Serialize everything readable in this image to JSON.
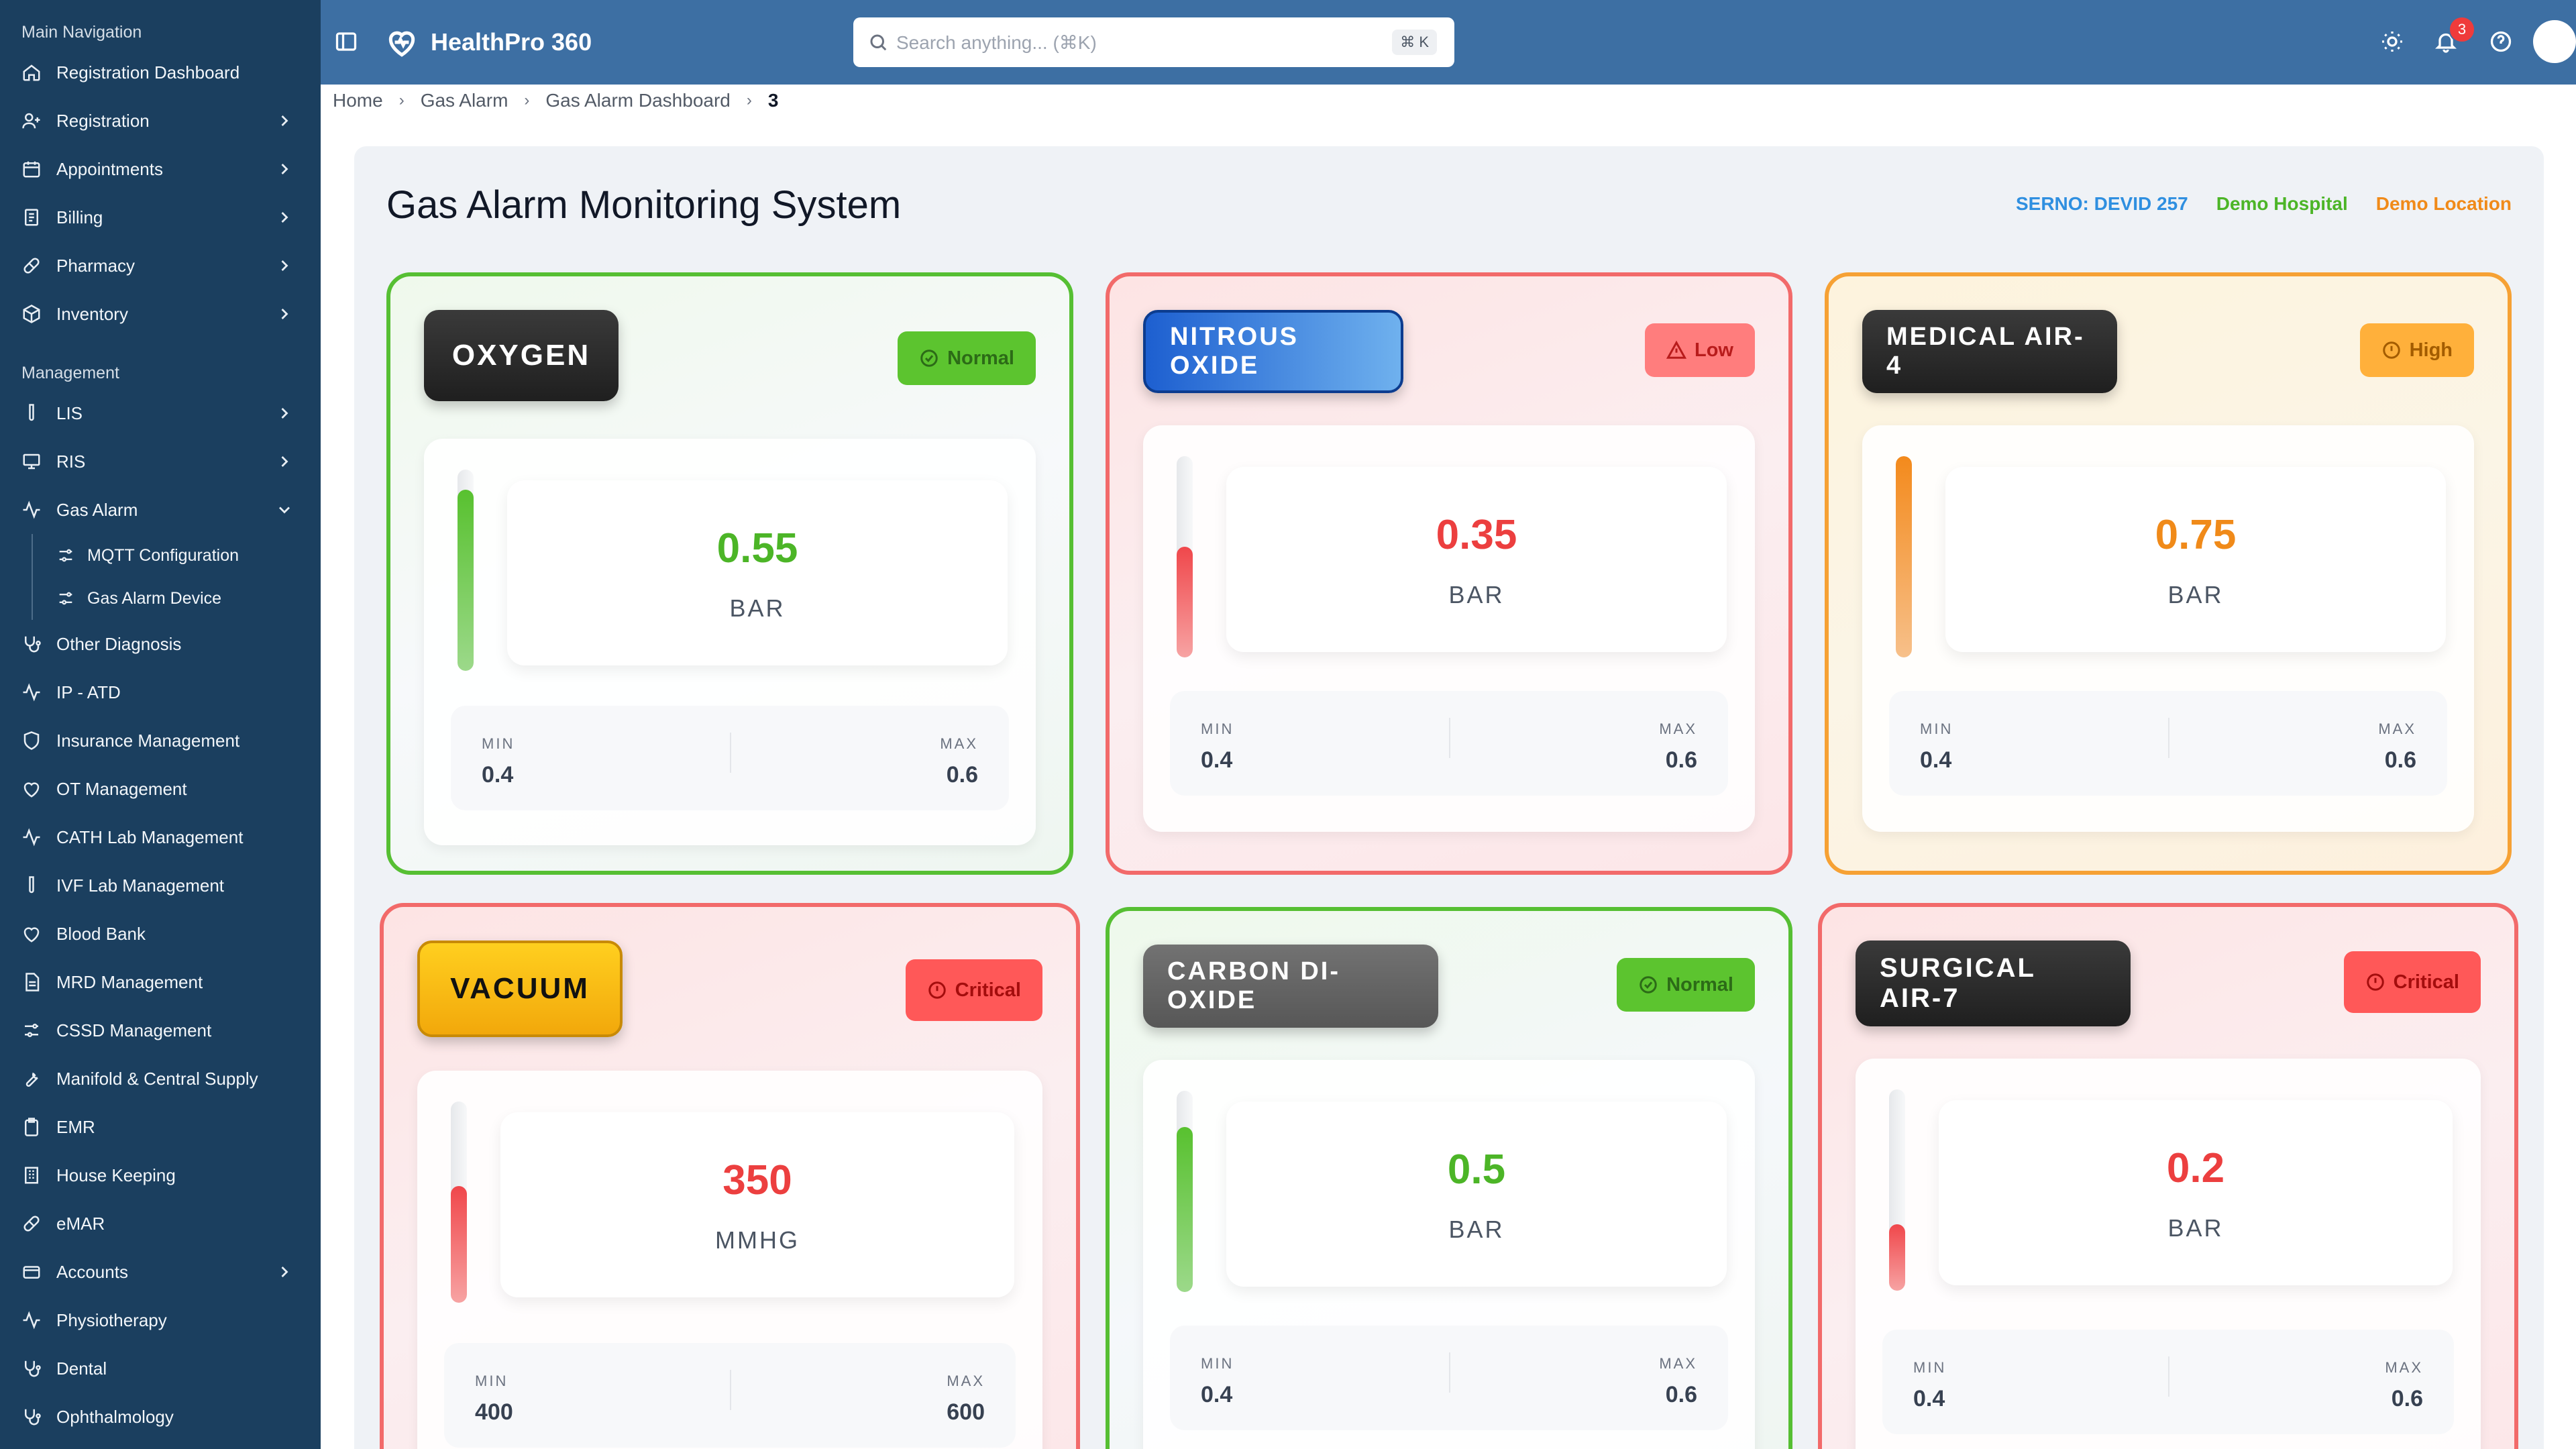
{
  "sidebar": {
    "section_main": "Main Navigation",
    "section_management": "Management",
    "main_items": [
      {
        "label": "Registration Dashboard",
        "chevron": false
      },
      {
        "label": "Registration",
        "chevron": true
      },
      {
        "label": "Appointments",
        "chevron": true
      },
      {
        "label": "Billing",
        "chevron": true
      },
      {
        "label": "Pharmacy",
        "chevron": true
      },
      {
        "label": "Inventory",
        "chevron": true
      }
    ],
    "mgmt_items": [
      {
        "label": "LIS",
        "chevron": true
      },
      {
        "label": "RIS",
        "chevron": true
      },
      {
        "label": "Gas Alarm",
        "chevron": "down"
      }
    ],
    "gas_alarm_sub": [
      {
        "label": "MQTT Configuration"
      },
      {
        "label": "Gas Alarm Device"
      }
    ],
    "other_items": [
      {
        "label": "Other Diagnosis"
      },
      {
        "label": "IP - ATD"
      },
      {
        "label": "Insurance Management"
      },
      {
        "label": "OT Management"
      },
      {
        "label": "CATH Lab Management"
      },
      {
        "label": "IVF Lab Management"
      },
      {
        "label": "Blood Bank"
      },
      {
        "label": "MRD Management"
      },
      {
        "label": "CSSD Management"
      },
      {
        "label": "Manifold & Central Supply"
      },
      {
        "label": "EMR"
      },
      {
        "label": "House Keeping"
      },
      {
        "label": "eMAR"
      },
      {
        "label": "Accounts",
        "chevron": true
      },
      {
        "label": "Physiotherapy"
      },
      {
        "label": "Dental"
      },
      {
        "label": "Ophthalmology"
      }
    ]
  },
  "topbar": {
    "app_name": "HealthPro 360",
    "search_placeholder": "Search anything... (⌘K)",
    "search_shortcut": "⌘ K",
    "notification_count": "3"
  },
  "breadcrumb": {
    "items": [
      "Home",
      "Gas Alarm",
      "Gas Alarm Dashboard"
    ],
    "current": "3"
  },
  "page": {
    "title": "Gas Alarm Monitoring System",
    "serno": "SERNO: DEVID 257",
    "hospital": "Demo Hospital",
    "location": "Demo Location",
    "colors": {
      "serno": "#2f8fe0",
      "hospital": "#4cb527",
      "location": "#f08a19"
    }
  },
  "cards": [
    {
      "gas": "OXYGEN",
      "status": "Normal",
      "value": "0.55",
      "unit": "BAR",
      "min_label": "MIN",
      "min": "0.4",
      "max_label": "MAX",
      "max": "0.6",
      "level_percent": 90
    },
    {
      "gas": "NITROUS OXIDE",
      "status": "Low",
      "value": "0.35",
      "unit": "BAR",
      "min_label": "MIN",
      "min": "0.4",
      "max_label": "MAX",
      "max": "0.6",
      "level_percent": 55
    },
    {
      "gas": "MEDICAL AIR-4",
      "status": "High",
      "value": "0.75",
      "unit": "BAR",
      "min_label": "MIN",
      "min": "0.4",
      "max_label": "MAX",
      "max": "0.6",
      "level_percent": 100
    },
    {
      "gas": "VACUUM",
      "status": "Critical",
      "value": "350",
      "unit": "MMHG",
      "min_label": "MIN",
      "min": "400",
      "max_label": "MAX",
      "max": "600",
      "level_percent": 58
    },
    {
      "gas": "CARBON DI-OXIDE",
      "status": "Normal",
      "value": "0.5",
      "unit": "BAR",
      "min_label": "MIN",
      "min": "0.4",
      "max_label": "MAX",
      "max": "0.6",
      "level_percent": 82
    },
    {
      "gas": "SURGICAL AIR-7",
      "status": "Critical",
      "value": "0.2",
      "unit": "BAR",
      "min_label": "MIN",
      "min": "0.4",
      "max_label": "MAX",
      "max": "0.6",
      "level_percent": 33
    }
  ]
}
